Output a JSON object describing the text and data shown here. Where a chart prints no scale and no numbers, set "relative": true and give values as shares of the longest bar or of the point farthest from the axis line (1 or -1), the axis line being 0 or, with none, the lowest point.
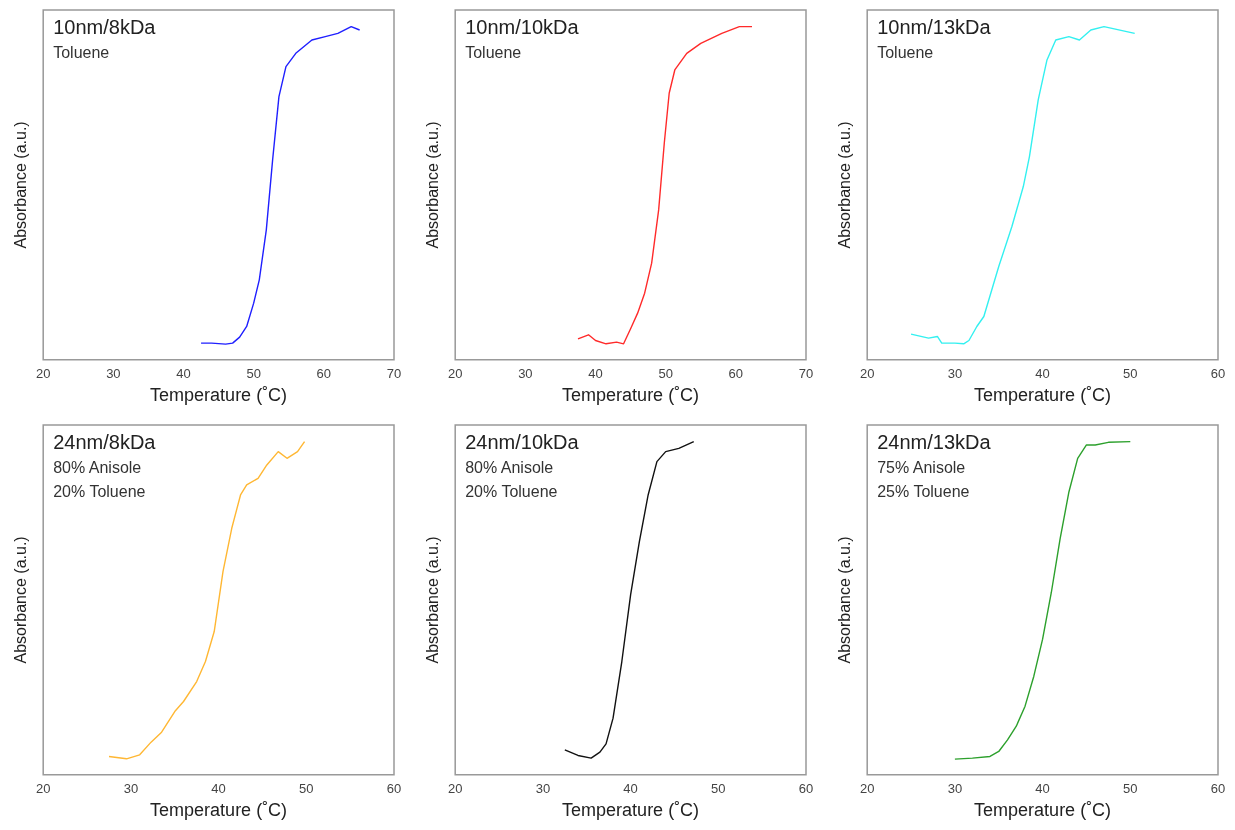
{
  "chart_data": [
    {
      "type": "line",
      "title": "10nm/8kDa",
      "annotations": [
        "Toluene"
      ],
      "xlabel": "Temperature (˚C)",
      "ylabel": "Absorbance (a.u.)",
      "relative": true,
      "xlim": [
        20,
        70
      ],
      "xticks": [
        20,
        30,
        40,
        50,
        60,
        70
      ],
      "tick_labels": "x",
      "grid": false,
      "legend": false,
      "marker": "none",
      "series": [
        {
          "color": "#1f1fff",
          "x": [
            42.5,
            44,
            46,
            47,
            48,
            49,
            50,
            50.8,
            51.8,
            52.7,
            53.6,
            54.6,
            56,
            58.3,
            60.2,
            62,
            63.9,
            65.1
          ],
          "values": [
            0.05,
            0.05,
            0.047,
            0.05,
            0.068,
            0.1,
            0.17,
            0.24,
            0.39,
            0.6,
            0.79,
            0.88,
            0.92,
            0.96,
            0.97,
            0.98,
            1,
            0.99
          ]
        }
      ]
    },
    {
      "type": "line",
      "title": "10nm/10kDa",
      "annotations": [
        "Toluene"
      ],
      "xlabel": "Temperature (˚C)",
      "ylabel": "Absorbance (a.u.)",
      "relative": true,
      "xlim": [
        20,
        70
      ],
      "xticks": [
        20,
        30,
        40,
        50,
        60,
        70
      ],
      "tick_labels": "x",
      "grid": false,
      "legend": false,
      "marker": "none",
      "series": [
        {
          "color": "#ff2a2a",
          "x": [
            37.5,
            39,
            40,
            41.5,
            43,
            44,
            45,
            46,
            47,
            48,
            49,
            49.8,
            50.5,
            51.3,
            53,
            55,
            58,
            60.5,
            62.3
          ],
          "values": [
            0.063,
            0.075,
            0.058,
            0.048,
            0.053,
            0.048,
            0.093,
            0.14,
            0.2,
            0.29,
            0.45,
            0.65,
            0.8,
            0.87,
            0.92,
            0.95,
            0.98,
            1,
            1
          ]
        }
      ]
    },
    {
      "type": "line",
      "title": "10nm/13kDa",
      "annotations": [
        "Toluene"
      ],
      "xlabel": "Temperature (˚C)",
      "ylabel": "Absorbance (a.u.)",
      "relative": true,
      "xlim": [
        20,
        60
      ],
      "xticks": [
        20,
        30,
        40,
        50,
        60
      ],
      "tick_labels": "x",
      "grid": false,
      "legend": false,
      "marker": "none",
      "series": [
        {
          "color": "#33f0f0",
          "x": [
            25,
            27,
            28,
            28.5,
            30,
            31,
            31.6,
            32.5,
            33.3,
            35,
            36.5,
            37.8,
            38.5,
            39.5,
            40.5,
            41.5,
            43,
            44.2,
            45.5,
            47,
            50.5
          ],
          "values": [
            0.077,
            0.065,
            0.07,
            0.05,
            0.05,
            0.048,
            0.058,
            0.1,
            0.13,
            0.28,
            0.4,
            0.52,
            0.61,
            0.78,
            0.9,
            0.96,
            0.97,
            0.96,
            0.99,
            1,
            0.98
          ]
        }
      ]
    },
    {
      "type": "line",
      "title": "24nm/8kDa",
      "annotations": [
        "80% Anisole",
        "20% Toluene"
      ],
      "xlabel": "Temperature (˚C)",
      "ylabel": "Absorbance (a.u.)",
      "relative": true,
      "xlim": [
        20,
        60
      ],
      "xticks": [
        20,
        30,
        40,
        50,
        60
      ],
      "tick_labels": "x",
      "grid": false,
      "legend": false,
      "marker": "none",
      "series": [
        {
          "color": "#ffb733",
          "x": [
            27.5,
            29.5,
            31,
            32.3,
            33.5,
            35,
            36,
            37.5,
            38.5,
            39.5,
            40.5,
            41.5,
            42.5,
            43.2,
            44.5,
            45.5,
            46.8,
            47.8,
            49,
            49.8
          ],
          "values": [
            0.055,
            0.048,
            0.06,
            0.098,
            0.128,
            0.19,
            0.22,
            0.28,
            0.34,
            0.43,
            0.61,
            0.74,
            0.84,
            0.87,
            0.89,
            0.93,
            0.97,
            0.95,
            0.97,
            1
          ]
        }
      ]
    },
    {
      "type": "line",
      "title": "24nm/10kDa",
      "annotations": [
        "80% Anisole",
        "20% Toluene"
      ],
      "xlabel": "Temperature (˚C)",
      "ylabel": "Absorbance (a.u.)",
      "relative": true,
      "xlim": [
        20,
        60
      ],
      "xticks": [
        20,
        30,
        40,
        50,
        60
      ],
      "tick_labels": "x",
      "grid": false,
      "legend": false,
      "marker": "none",
      "series": [
        {
          "color": "#111111",
          "x": [
            32.5,
            34,
            35.5,
            36.5,
            37.2,
            38,
            39,
            40,
            41,
            42,
            43,
            44,
            45.5,
            47.2
          ],
          "values": [
            0.075,
            0.058,
            0.05,
            0.068,
            0.093,
            0.17,
            0.34,
            0.54,
            0.7,
            0.84,
            0.94,
            0.97,
            0.98,
            1
          ]
        }
      ]
    },
    {
      "type": "line",
      "title": "24nm/13kDa",
      "annotations": [
        "75% Anisole",
        "25% Toluene"
      ],
      "xlabel": "Temperature (˚C)",
      "ylabel": "Absorbance (a.u.)",
      "relative": true,
      "xlim": [
        20,
        60
      ],
      "xticks": [
        20,
        30,
        40,
        50,
        60
      ],
      "tick_labels": "x",
      "grid": false,
      "legend": false,
      "marker": "none",
      "series": [
        {
          "color": "#2ca02c",
          "x": [
            30,
            32,
            34,
            35,
            36,
            37,
            38,
            39,
            40,
            41,
            42,
            43,
            44,
            45,
            46,
            47.5,
            50
          ],
          "values": [
            0.047,
            0.05,
            0.055,
            0.07,
            0.105,
            0.146,
            0.206,
            0.296,
            0.407,
            0.548,
            0.709,
            0.849,
            0.95,
            0.99,
            0.99,
            0.998,
            1
          ]
        }
      ]
    }
  ]
}
